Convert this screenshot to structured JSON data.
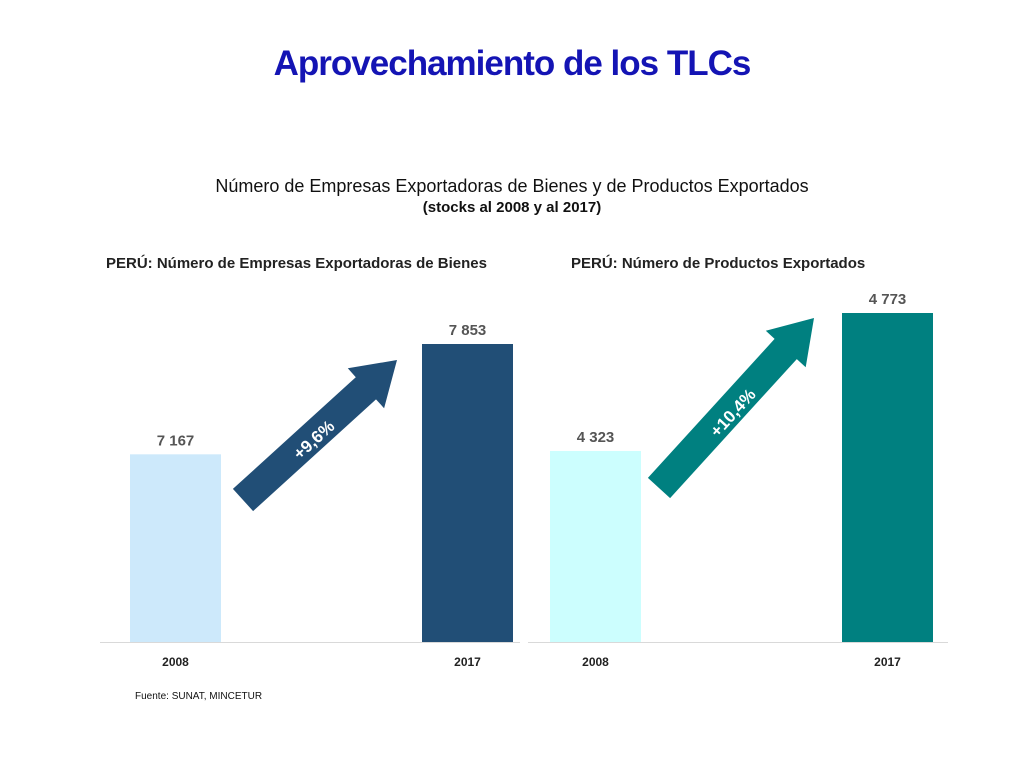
{
  "slide_title": "Aprovechamiento de los TLCs",
  "subtitle": "Número de Empresas Exportadoras de Bienes y de Productos Exportados",
  "subtitle_note": "(stocks al 2008 y al 2017)",
  "source": "Fuente: SUNAT, MINCETUR",
  "chart_data": [
    {
      "type": "bar",
      "title": "PERÚ: Número de Empresas Exportadoras de Bienes",
      "categories": [
        "2008",
        "2017"
      ],
      "values": [
        7167,
        7853
      ],
      "value_labels": [
        "7 167",
        "7 853"
      ],
      "bar_colors": [
        "#cde9fb",
        "#214e76"
      ],
      "growth_label": "+9,6%",
      "arrow_color": "#214e76",
      "ylim": [
        6000,
        8100
      ],
      "grid": false,
      "legend": "none"
    },
    {
      "type": "bar",
      "title": "PERÚ: Número de Productos Exportados",
      "categories": [
        "2008",
        "2017"
      ],
      "values": [
        4323,
        4773
      ],
      "value_labels": [
        "4 323",
        "4 773"
      ],
      "bar_colors": [
        "#ccfefe",
        "#008080"
      ],
      "growth_label": "+10,4%",
      "arrow_color": "#008080",
      "ylim": [
        3700,
        4800
      ],
      "grid": false,
      "legend": "none"
    }
  ]
}
